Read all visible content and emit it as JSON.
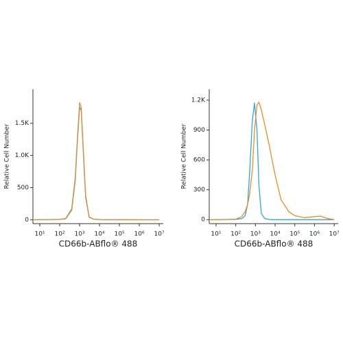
{
  "chart_data": [
    {
      "type": "line",
      "xscale": "log",
      "x_label": "CD66b-ABflo® 488",
      "y_label": "Relative Cell Number",
      "xlim": [
        4.5,
        16000000
      ],
      "ylim": [
        -60,
        2030
      ],
      "xticks": [
        {
          "value": 10,
          "label": "10¹"
        },
        {
          "value": 100,
          "label": "10²"
        },
        {
          "value": 1000,
          "label": "10³"
        },
        {
          "value": 10000,
          "label": "10⁴"
        },
        {
          "value": 100000,
          "label": "10⁵"
        },
        {
          "value": 1000000,
          "label": "10⁶"
        },
        {
          "value": 10000000,
          "label": "10⁷"
        }
      ],
      "yticks": [
        0,
        500,
        {
          "value": 1000,
          "label": "1.0K"
        },
        {
          "value": 1500,
          "label": "1.5K"
        }
      ],
      "x": [
        5,
        10,
        30,
        100,
        200,
        400,
        600,
        800,
        1000,
        1200,
        1500,
        2000,
        3000,
        5000,
        10000,
        30000,
        100000,
        300000,
        1000000,
        3000000,
        10000000
      ],
      "series": [
        {
          "color": "#29a8e0",
          "values": [
            0,
            2,
            3,
            5,
            15,
            150,
            600,
            1300,
            1750,
            1700,
            1100,
            350,
            40,
            8,
            3,
            2,
            1,
            1,
            0,
            0,
            0
          ]
        },
        {
          "color": "#f08a24",
          "values": [
            0,
            3,
            4,
            6,
            20,
            170,
            650,
            1350,
            1820,
            1750,
            1150,
            380,
            45,
            10,
            4,
            2,
            2,
            1,
            1,
            0,
            0
          ]
        }
      ]
    },
    {
      "type": "line",
      "xscale": "log",
      "x_label": "CD66b-ABflo® 488",
      "y_label": "Relative Cell Number",
      "xlim": [
        4.5,
        16000000
      ],
      "ylim": [
        -40,
        1310
      ],
      "xticks": [
        {
          "value": 10,
          "label": "10¹"
        },
        {
          "value": 100,
          "label": "10²"
        },
        {
          "value": 1000,
          "label": "10³"
        },
        {
          "value": 10000,
          "label": "10⁴"
        },
        {
          "value": 100000,
          "label": "10⁵"
        },
        {
          "value": 1000000,
          "label": "10⁶"
        },
        {
          "value": 10000000,
          "label": "10⁷"
        }
      ],
      "yticks": [
        0,
        300,
        600,
        900,
        {
          "value": 1200,
          "label": "1.2K"
        }
      ],
      "x": [
        5,
        10,
        30,
        100,
        200,
        300,
        400,
        500,
        700,
        900,
        1200,
        1500,
        2000,
        3000,
        5000,
        7000,
        10000,
        20000,
        50000,
        100000,
        300000,
        1000000,
        2000000,
        5000000,
        10000000
      ],
      "series": [
        {
          "color": "#29a8e0",
          "values": [
            0,
            0,
            1,
            3,
            10,
            40,
            150,
            450,
            1000,
            1170,
            900,
            350,
            60,
            10,
            2,
            0,
            0,
            0,
            0,
            0,
            0,
            0,
            0,
            0,
            0
          ]
        },
        {
          "color": "#f08a24",
          "values": [
            0,
            0,
            1,
            5,
            30,
            80,
            150,
            250,
            500,
            900,
            1150,
            1180,
            1100,
            950,
            750,
            600,
            450,
            200,
            80,
            40,
            20,
            30,
            35,
            10,
            0
          ]
        }
      ]
    }
  ]
}
